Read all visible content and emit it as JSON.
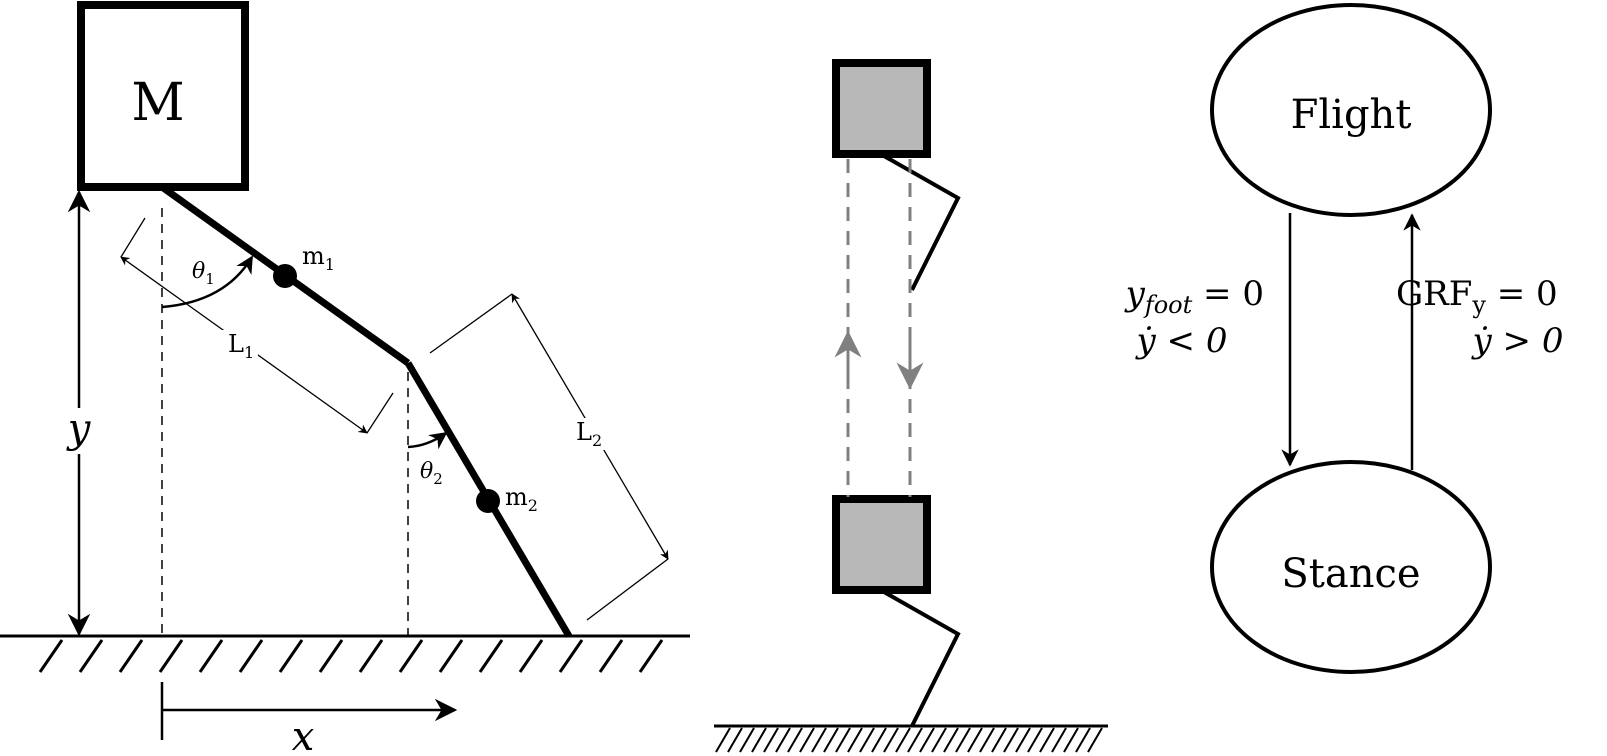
{
  "panel_model": {
    "body_mass": "M",
    "mass1": "m",
    "mass1_sub": "1",
    "mass2": "m",
    "mass2_sub": "2",
    "theta1": "θ",
    "theta1_sub": "1",
    "theta2": "θ",
    "theta2_sub": "2",
    "length1": "L",
    "length1_sub": "1",
    "length2": "L",
    "length2_sub": "2",
    "y_label": "y",
    "x_label": "x"
  },
  "panel_state_machine": {
    "flight_state": "Flight",
    "stance_state": "Stance",
    "touchdown_cond_var": "y",
    "touchdown_cond_sub": "foot",
    "touchdown_cond_rest": " = 0",
    "touchdown_cond_2": "ẏ < 0",
    "liftoff_cond_var": "GRF",
    "liftoff_cond_sub": "y",
    "liftoff_cond_rest": " = 0",
    "liftoff_cond_2": "ẏ > 0"
  },
  "colors": {
    "line": "#000000",
    "body_fill_gray": "#b8b8b8",
    "dashed_gray": "#808080"
  }
}
